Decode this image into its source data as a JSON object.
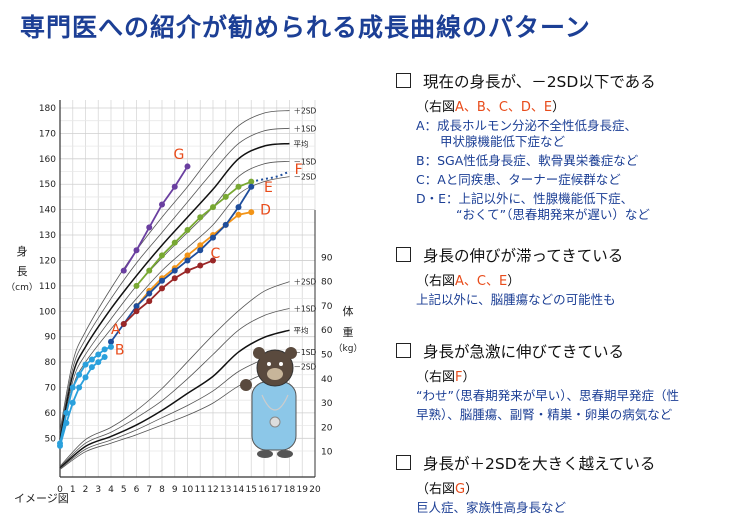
{
  "title": "専門医への紹介が勧められる成長曲線のパターン",
  "image_note": "イメージ図",
  "colors": {
    "title": "#1c3f95",
    "desc": "#1c3f95",
    "letter": "#e84b1a"
  },
  "chart_data": {
    "type": "line",
    "xlabel": "年 齢（歳）",
    "height_label": [
      "身",
      "長",
      "（cm）"
    ],
    "weight_label": [
      "体",
      "重",
      "（kg）"
    ],
    "x_ticks": [
      0,
      1,
      2,
      3,
      4,
      5,
      6,
      7,
      8,
      9,
      10,
      11,
      12,
      13,
      14,
      15,
      16,
      17,
      18,
      19,
      20
    ],
    "height_ticks": [
      50,
      60,
      70,
      80,
      90,
      100,
      110,
      120,
      130,
      140,
      150,
      160,
      170,
      180
    ],
    "weight_ticks": [
      10,
      20,
      30,
      40,
      50,
      60,
      70,
      80,
      90
    ],
    "height_ref_labels": [
      "＋2SD",
      "＋1SD",
      "平均",
      "－1SD",
      "－2SD"
    ],
    "weight_ref_labels": [
      "＋2SD",
      "＋1SD",
      "平均",
      "－1SD",
      "－2SD"
    ],
    "height_ref_curves": [
      {
        "name": "＋2SD",
        "x": [
          0,
          1,
          2,
          4,
          6,
          8,
          10,
          12,
          14,
          16,
          18
        ],
        "y": [
          53,
          80,
          92,
          109,
          124,
          137,
          149,
          162,
          173,
          178,
          179
        ]
      },
      {
        "name": "＋1SD",
        "x": [
          0,
          1,
          2,
          4,
          6,
          8,
          10,
          12,
          14,
          16,
          18
        ],
        "y": [
          51.5,
          77.5,
          89,
          105,
          119,
          131,
          143,
          155,
          166,
          171,
          172
        ]
      },
      {
        "name": "平均",
        "x": [
          0,
          1,
          2,
          4,
          6,
          8,
          10,
          12,
          14,
          16,
          18
        ],
        "y": [
          49.5,
          75,
          86,
          101,
          114,
          126,
          137,
          148,
          160,
          165,
          166
        ]
      },
      {
        "name": "－1SD",
        "x": [
          0,
          1,
          2,
          4,
          6,
          8,
          10,
          12,
          14,
          16,
          18
        ],
        "y": [
          48,
          72.5,
          83,
          97,
          110,
          121,
          131,
          141,
          153,
          158,
          159
        ]
      },
      {
        "name": "－2SD",
        "x": [
          0,
          1,
          2,
          4,
          6,
          8,
          10,
          12,
          14,
          16,
          18
        ],
        "y": [
          46.5,
          70,
          80,
          93,
          105,
          116,
          125,
          134,
          146,
          151,
          153
        ]
      }
    ],
    "weight_ref_curves": [
      {
        "name": "＋2SD",
        "x": [
          0,
          2,
          4,
          6,
          8,
          10,
          12,
          14,
          16,
          18
        ],
        "y": [
          4,
          15,
          20,
          27,
          36,
          47,
          58,
          68,
          76,
          80
        ]
      },
      {
        "name": "＋1SD",
        "x": [
          0,
          2,
          4,
          6,
          8,
          10,
          12,
          14,
          16,
          18
        ],
        "y": [
          3.7,
          13.5,
          18,
          24,
          31,
          40,
          50,
          60,
          66,
          69
        ]
      },
      {
        "name": "平均",
        "x": [
          0,
          2,
          4,
          6,
          8,
          10,
          12,
          14,
          16,
          18
        ],
        "y": [
          3.3,
          12.2,
          16.3,
          21,
          27,
          34,
          41,
          51,
          57,
          60
        ]
      },
      {
        "name": "－1SD",
        "x": [
          0,
          2,
          4,
          6,
          8,
          10,
          12,
          14,
          16,
          18
        ],
        "y": [
          3,
          11,
          14.8,
          19,
          24,
          29,
          35,
          43,
          48,
          51
        ]
      },
      {
        "name": "－2SD",
        "x": [
          0,
          2,
          4,
          6,
          8,
          10,
          12,
          14,
          16,
          18
        ],
        "y": [
          2.7,
          10,
          13.5,
          17,
          21,
          25,
          30,
          37,
          42,
          45
        ]
      }
    ],
    "series": [
      {
        "name": "G",
        "color": "#6a3fa0",
        "x": [
          5,
          6,
          7,
          8,
          9,
          10
        ],
        "y": [
          116,
          124,
          133,
          142,
          149,
          157
        ]
      },
      {
        "name": "E",
        "color": "#78a832",
        "x": [
          6,
          7,
          8,
          9,
          10,
          11,
          12,
          13,
          14,
          15
        ],
        "y": [
          110,
          116,
          122,
          127,
          132,
          137,
          141,
          145,
          149,
          151
        ]
      },
      {
        "name": "D",
        "color": "#f29418",
        "x": [
          6,
          7,
          8,
          9,
          10,
          11,
          12,
          13,
          14,
          15
        ],
        "y": [
          102,
          108,
          113,
          117,
          122,
          126,
          130,
          134,
          138,
          139
        ]
      },
      {
        "name": "A/C",
        "color": "#1f4e9c",
        "x": [
          4,
          5,
          6,
          7,
          8,
          9,
          10,
          11,
          12,
          13,
          14,
          15
        ],
        "y": [
          88,
          95,
          102,
          107,
          112,
          116,
          120,
          124,
          129,
          134,
          141,
          149
        ]
      },
      {
        "name": "C",
        "color": "#9a2727",
        "x": [
          5,
          6,
          7,
          8,
          9,
          10,
          11,
          12
        ],
        "y": [
          95,
          100,
          104,
          109,
          113,
          116,
          118,
          120
        ]
      },
      {
        "name": "B",
        "color": "#2aa0dc",
        "x": [
          0,
          0.5,
          1,
          1.5,
          2,
          2.5,
          3,
          3.5,
          4
        ],
        "y": [
          48,
          60,
          70,
          75,
          79,
          81,
          83,
          85,
          86
        ]
      },
      {
        "name": "B2",
        "color": "#2aa0dc",
        "x": [
          0,
          0.5,
          1,
          1.5,
          2,
          2.5,
          3,
          3.5
        ],
        "y": [
          47,
          56,
          64,
          70,
          74,
          78,
          80,
          82
        ]
      }
    ],
    "dotted_f": {
      "x": [
        15,
        16,
        17,
        18
      ],
      "y": [
        151,
        152,
        153,
        155
      ]
    },
    "point_labels": [
      "G",
      "E",
      "D",
      "C",
      "A",
      "B",
      "F"
    ]
  },
  "sections": [
    {
      "title": "現在の身長が、－2SD以下である",
      "ref_pre": "（右図",
      "ref_letters": "A、B、C、D、E",
      "ref_post": "）",
      "lines": [
        "A：成長ホルモン分泌不全性低身長症、",
        "甲状腺機能低下症など",
        "B：SGA性低身長症、軟骨異栄養症など",
        "C：Aと同疾患、ターナー症候群など",
        "D・E：上記以外に、性腺機能低下症、",
        "“おくて”（思春期発来が遅い）など"
      ]
    },
    {
      "title": "身長の伸びが滞ってきている",
      "ref_pre": "（右図",
      "ref_letters": "A、C、E",
      "ref_post": "）",
      "lines": [
        "上記以外に、脳腫瘍などの可能性も"
      ]
    },
    {
      "title": "身長が急激に伸びてきている",
      "ref_pre": "（右図",
      "ref_letters": "F",
      "ref_post": "）",
      "lines": [
        "“わせ”（思春期発来が早い）、思春期早発症（性",
        "早熟）、脳腫瘍、副腎・精巣・卵巣の病気など"
      ]
    },
    {
      "title": "身長が＋2SDを大きく越えている",
      "ref_pre": "（右図",
      "ref_letters": "G",
      "ref_post": "）",
      "lines": [
        "巨人症、家族性高身長など"
      ]
    }
  ]
}
